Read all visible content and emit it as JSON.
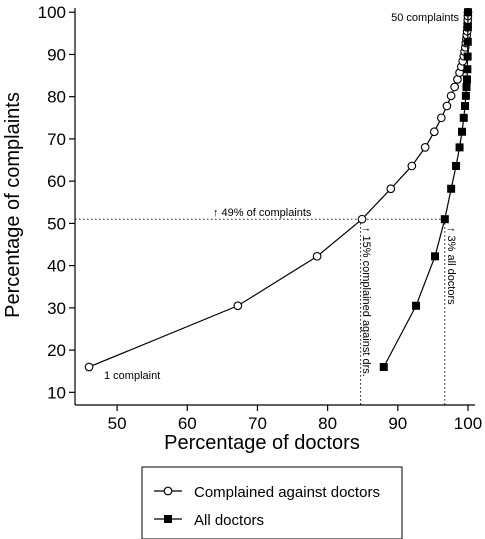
{
  "chart_data": {
    "type": "line",
    "xlabel": "Percentage of doctors",
    "ylabel": "Percentage of complaints",
    "xlim": [
      44,
      101
    ],
    "ylim": [
      7,
      101
    ],
    "xticks": [
      50,
      60,
      70,
      80,
      90,
      100
    ],
    "yticks": [
      10,
      20,
      30,
      40,
      50,
      60,
      70,
      80,
      90,
      100
    ],
    "grid": false,
    "legend": "bottom",
    "series": [
      {
        "name": "Complained against doctors",
        "marker": "open-circle",
        "x": [
          46,
          67.2,
          78.5,
          84.9,
          89,
          92,
          93.9,
          95.2,
          96.2,
          97,
          97.6,
          98.1,
          98.5,
          98.8,
          99.05,
          99.25,
          99.4,
          99.52,
          99.62,
          99.7,
          99.77,
          99.83,
          99.88,
          99.92,
          99.95,
          99.97,
          99.985,
          100
        ],
        "y": [
          16,
          30.5,
          42.2,
          51,
          58.2,
          63.6,
          68,
          71.7,
          75,
          77.8,
          80.2,
          82.3,
          84.1,
          85.7,
          87.1,
          88.4,
          89.6,
          90.7,
          91.7,
          92.7,
          93.7,
          94.6,
          95.5,
          96.4,
          97.3,
          98.2,
          99.1,
          100
        ]
      },
      {
        "name": "All doctors",
        "marker": "filled-square",
        "x": [
          88,
          92.6,
          95.3,
          96.7,
          97.6,
          98.3,
          98.8,
          99.15,
          99.4,
          99.58,
          99.7,
          99.79,
          99.86,
          99.91,
          99.95,
          99.97,
          99.985,
          100
        ],
        "y": [
          16,
          30.5,
          42.2,
          51,
          58.2,
          63.6,
          68,
          71.7,
          75,
          77.8,
          80.2,
          82.3,
          84.1,
          86.5,
          89.5,
          93,
          96.5,
          100
        ]
      }
    ],
    "reference_lines": [
      {
        "orientation": "horizontal",
        "value": 51
      },
      {
        "orientation": "vertical",
        "value": 84.7
      },
      {
        "orientation": "vertical",
        "value": 96.7
      }
    ],
    "annotations": {
      "one_complaint": "1 complaint",
      "fifty_complaints": "50 complaints",
      "complaints_49": "↑ 49% of complaints",
      "complained_15": "↑ 15% complained against drs.",
      "all_doctors_3": "↑ 3% all doctors"
    }
  }
}
